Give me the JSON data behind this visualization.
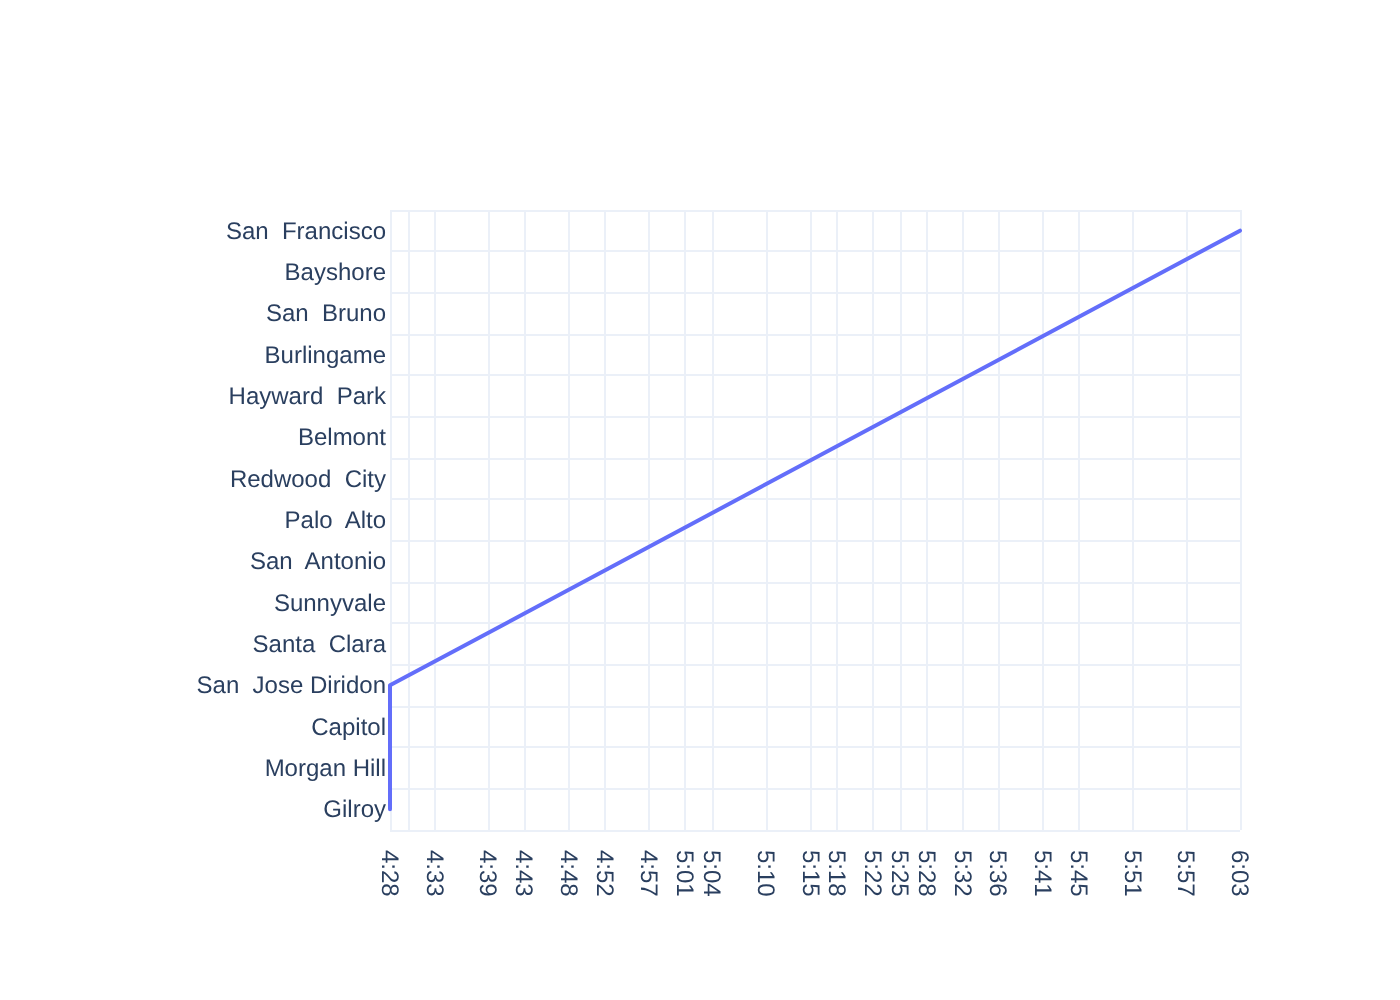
{
  "chart_data": {
    "type": "line",
    "orientation": "horizontal",
    "categories": [
      "San  Francisco",
      "Bayshore",
      "San  Bruno",
      "Burlingame",
      "Hayward  Park",
      "Belmont",
      "Redwood  City",
      "Palo  Alto",
      "San  Antonio",
      "Sunnyvale",
      "Santa  Clara",
      "San  Jose Diridon",
      "Capitol",
      "Morgan Hill",
      "Gilroy"
    ],
    "series": [
      {
        "color": "#636efa",
        "values": [
          6.05,
          null,
          null,
          null,
          null,
          null,
          null,
          null,
          null,
          null,
          null,
          4.4667,
          4.4667,
          4.4667,
          4.4667
        ]
      }
    ],
    "xlim": [
      4.4667,
      6.05
    ],
    "xticks": [
      {
        "value": 4.4667,
        "label": "4:28"
      },
      {
        "value": 4.5,
        "label": null
      },
      {
        "value": 4.55,
        "label": "4:33"
      },
      {
        "value": 4.65,
        "label": "4:39"
      },
      {
        "value": 4.7167,
        "label": "4:43"
      },
      {
        "value": 4.8,
        "label": "4:48"
      },
      {
        "value": 4.8667,
        "label": "4:52"
      },
      {
        "value": 4.95,
        "label": "4:57"
      },
      {
        "value": 5.0167,
        "label": "5:01"
      },
      {
        "value": 5.0667,
        "label": "5:04"
      },
      {
        "value": 5.1667,
        "label": "5:10"
      },
      {
        "value": 5.25,
        "label": "5:15"
      },
      {
        "value": 5.3,
        "label": "5:18"
      },
      {
        "value": 5.3667,
        "label": "5:22"
      },
      {
        "value": 5.4167,
        "label": "5:25"
      },
      {
        "value": 5.4667,
        "label": "5:28"
      },
      {
        "value": 5.5333,
        "label": "5:32"
      },
      {
        "value": 5.6,
        "label": "5:36"
      },
      {
        "value": 5.6833,
        "label": "5:41"
      },
      {
        "value": 5.75,
        "label": "5:45"
      },
      {
        "value": 5.85,
        "label": "5:51"
      },
      {
        "value": 5.95,
        "label": "5:57"
      },
      {
        "value": 6.05,
        "label": "6:03"
      }
    ],
    "grid": true,
    "marker": "none",
    "line_style": "solid"
  }
}
